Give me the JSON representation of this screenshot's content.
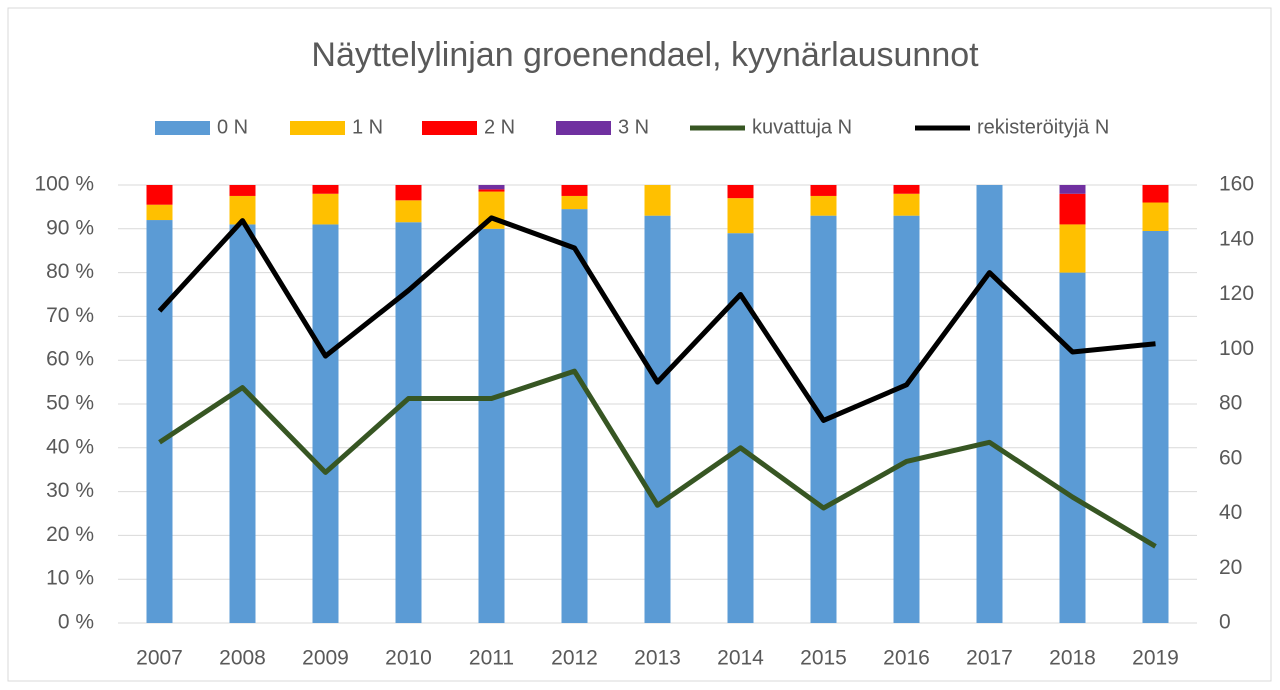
{
  "chart_data": {
    "type": "bar",
    "stacked": true,
    "title": "Näyttelylinjan groenendael, kyynärlausunnot",
    "categories": [
      "2007",
      "2008",
      "2009",
      "2010",
      "2011",
      "2012",
      "2013",
      "2014",
      "2015",
      "2016",
      "2017",
      "2018",
      "2019"
    ],
    "series": [
      {
        "name": "0 N",
        "color": "#5b9bd5",
        "values": [
          92,
          91,
          91,
          91.5,
          90,
          94.5,
          93,
          89,
          93,
          93,
          100,
          80,
          89.5
        ]
      },
      {
        "name": "1 N",
        "color": "#ffc000",
        "values": [
          3.5,
          6.5,
          7,
          5,
          8.5,
          3,
          7,
          8,
          4.5,
          5,
          0,
          11,
          6.5
        ]
      },
      {
        "name": "2 N",
        "color": "#ff0000",
        "values": [
          4.5,
          2.5,
          2,
          3.5,
          0.5,
          2.5,
          0,
          3,
          2.5,
          2,
          0,
          7,
          4
        ]
      },
      {
        "name": "3 N",
        "color": "#7030a0",
        "values": [
          0,
          0,
          0,
          0,
          1,
          0,
          0,
          0,
          0,
          0,
          0,
          2,
          0
        ]
      },
      {
        "name": "kuvattuja N",
        "type": "line",
        "axis": "y2",
        "color": "#375623",
        "values": [
          66,
          86,
          55,
          82,
          82,
          92,
          43,
          64,
          42,
          59,
          66,
          46,
          28
        ]
      },
      {
        "name": "rekisteröityjä N",
        "type": "line",
        "axis": "y2",
        "color": "#000000",
        "values": [
          114,
          147,
          97.5,
          121.5,
          148,
          137,
          88,
          120,
          74,
          87,
          128,
          99,
          102
        ]
      }
    ],
    "ylim": [
      0,
      100
    ],
    "yticks": [
      {
        "value": 0,
        "label": "0 %"
      },
      {
        "value": 10,
        "label": "10 %"
      },
      {
        "value": 20,
        "label": "20 %"
      },
      {
        "value": 30,
        "label": "30 %"
      },
      {
        "value": 40,
        "label": "40 %"
      },
      {
        "value": 50,
        "label": "50 %"
      },
      {
        "value": 60,
        "label": "60 %"
      },
      {
        "value": 70,
        "label": "70 %"
      },
      {
        "value": 80,
        "label": "80 %"
      },
      {
        "value": 90,
        "label": "90 %"
      },
      {
        "value": 100,
        "label": "100 %"
      }
    ],
    "y2lim": [
      0,
      160
    ],
    "y2ticks": [
      0,
      20,
      40,
      60,
      80,
      100,
      120,
      140,
      160
    ],
    "grid": true,
    "legend": "top"
  }
}
